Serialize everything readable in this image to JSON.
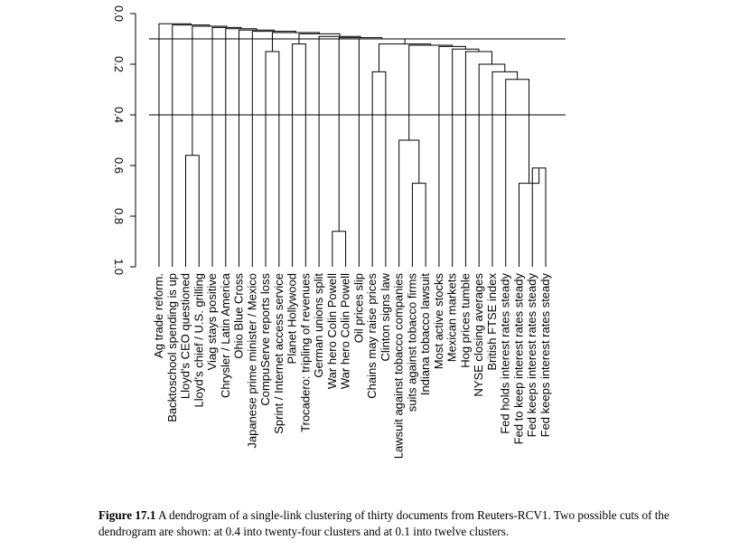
{
  "chart_data": {
    "type": "dendrogram",
    "ylim": [
      0,
      1
    ],
    "y_ticks": [
      "0.0",
      "0.2",
      "0.4",
      "0.6",
      "0.8",
      "1.0"
    ],
    "leaves": [
      "Ag trade reform.",
      "Backtoschool spending is up",
      "Lloyd's CEO questioned",
      "Lloyd's chief / U.S. grilling",
      "Viag stays positive",
      "Chrysler / Latin America",
      "Ohio Blue Cross",
      "Japanese prime minister / Mexico",
      "CompuServe reports loss",
      "Sprint / Internet access service",
      "Planet Hollywood",
      "Trocadero: tripling of revenues",
      "German unions split",
      "War hero Colin Powell",
      "War hero Colin Powell",
      "Oil prices slip",
      "Chains may raise prices",
      "Clinton signs law",
      "Lawsuit against tobacco companies",
      "suits against tobacco firms",
      "Indiana tobacco lawsuit",
      "Most active stocks",
      "Mexican markets",
      "Hog prices tumble",
      "NYSE closing averages",
      "British FTSE index",
      "Fed holds interest rates steady",
      "Fed to keep interest rates steady",
      "Fed keeps interest rates steady",
      "Fed keeps interest rates steady"
    ],
    "merges": [
      {
        "a": "L2",
        "b": "L3",
        "height": 0.56
      },
      {
        "a": "L13",
        "b": "L14",
        "height": 0.86
      },
      {
        "a": "L8",
        "b": "L9",
        "height": 0.15
      },
      {
        "a": "L10",
        "b": "L11",
        "height": 0.12
      },
      {
        "a": "L16",
        "b": "L17",
        "height": 0.23
      },
      {
        "a": "L19",
        "b": "L20",
        "height": 0.67
      },
      {
        "a": "L18",
        "b": "M5",
        "height": 0.5
      },
      {
        "a": "L28",
        "b": "L29",
        "height": 0.61
      },
      {
        "a": "L27",
        "b": "M7",
        "height": 0.67
      },
      {
        "a": "L26",
        "b": "M8",
        "height": 0.26
      },
      {
        "a": "L25",
        "b": "M9",
        "height": 0.23
      },
      {
        "a": "L24",
        "b": "M10",
        "height": 0.2
      },
      {
        "a": "L23",
        "b": "M11",
        "height": 0.15
      },
      {
        "a": "L22",
        "b": "M12",
        "height": 0.14
      },
      {
        "a": "L21",
        "b": "M13",
        "height": 0.13
      },
      {
        "a": "M6",
        "b": "M14",
        "height": 0.125
      },
      {
        "a": "M4",
        "b": "M15",
        "height": 0.12
      },
      {
        "a": "L15",
        "b": "M16",
        "height": 0.1
      },
      {
        "a": "M1",
        "b": "M17",
        "height": 0.095
      },
      {
        "a": "L12",
        "b": "M18",
        "height": 0.09
      },
      {
        "a": "M3",
        "b": "M19",
        "height": 0.08
      },
      {
        "a": "M2",
        "b": "M20",
        "height": 0.075
      },
      {
        "a": "L7",
        "b": "M21",
        "height": 0.07
      },
      {
        "a": "L6",
        "b": "M22",
        "height": 0.065
      },
      {
        "a": "L5",
        "b": "M23",
        "height": 0.06
      },
      {
        "a": "L4",
        "b": "M24",
        "height": 0.055
      },
      {
        "a": "M0",
        "b": "M25",
        "height": 0.05
      },
      {
        "a": "L1",
        "b": "M26",
        "height": 0.045
      },
      {
        "a": "L0",
        "b": "M27",
        "height": 0.04
      }
    ],
    "cut_lines": [
      0.1,
      0.4
    ]
  },
  "caption": {
    "label": "Figure 17.1",
    "text": "A dendrogram of a single-link clustering of thirty documents from Reuters-RCV1. Two possible cuts of the dendrogram are shown: at 0.4 into twenty-four clusters and at 0.1 into twelve clusters."
  }
}
